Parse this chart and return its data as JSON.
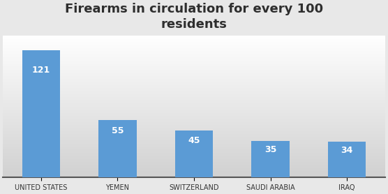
{
  "title": "Firearms in circulation for every 100\nresidents",
  "categories": [
    "UNITED STATES",
    "YEMEN",
    "SWITZERLAND",
    "SAUDI ARABIA",
    "IRAQ"
  ],
  "values": [
    121,
    55,
    45,
    35,
    34
  ],
  "bar_color": "#5B9BD5",
  "label_color": "#FFFFFF",
  "background_color": "#E8E8E8",
  "grid_color": "#C8C8C8",
  "title_fontsize": 13,
  "label_fontsize": 9,
  "tick_fontsize": 7,
  "ylim": [
    0,
    135
  ]
}
